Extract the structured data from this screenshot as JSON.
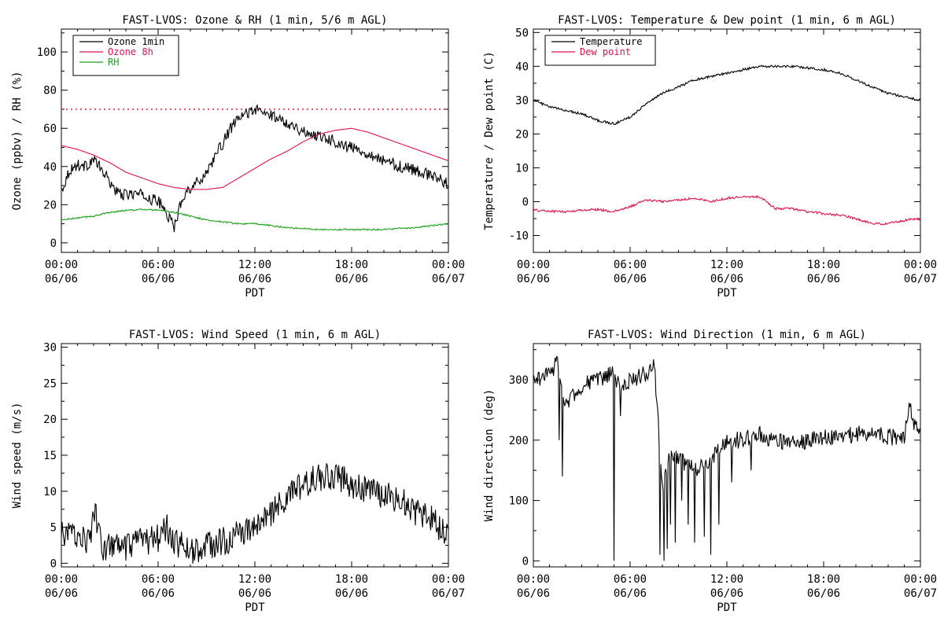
{
  "chart_data": [
    {
      "id": "ozone_rh",
      "type": "line",
      "title": "FAST-LVOS: Ozone & RH (1 min, 5/6 m AGL)",
      "xlabel": "PDT",
      "ylabel": "Ozone (ppbv) / RH (%)",
      "xlim": [
        "06/06 00:00",
        "06/07 00:00"
      ],
      "x_ticks": [
        {
          "time": "00:00",
          "date": "06/06"
        },
        {
          "time": "06:00",
          "date": "06/06"
        },
        {
          "time": "12:00",
          "date": "06/06"
        },
        {
          "time": "18:00",
          "date": "06/06"
        },
        {
          "time": "00:00",
          "date": "06/07"
        }
      ],
      "ylim": [
        -5,
        112
      ],
      "y_ticks": [
        "0",
        "20",
        "40",
        "60",
        "80",
        "100"
      ],
      "legend": "top-left",
      "reference_line": {
        "y": 70,
        "color": "#e0202e",
        "style": "dotted"
      },
      "series": [
        {
          "name": "Ozone 1min",
          "color": "#000000",
          "noise": 3.0,
          "x": [
            0,
            0.5,
            1,
            1.5,
            2,
            2.5,
            3,
            3.5,
            4,
            4.5,
            5,
            5.5,
            6,
            6.5,
            7,
            7.5,
            8,
            8.5,
            9,
            9.5,
            10,
            10.5,
            11,
            11.5,
            12,
            12.5,
            13,
            13.5,
            14,
            14.5,
            15,
            15.5,
            16,
            16.5,
            17,
            17.5,
            18,
            19,
            20,
            21,
            22,
            23,
            24
          ],
          "values": [
            27,
            38,
            41,
            40,
            44,
            38,
            32,
            26,
            25,
            26,
            25,
            23,
            22,
            16,
            8,
            24,
            29,
            32,
            37,
            45,
            52,
            60,
            65,
            68,
            70,
            68,
            67,
            65,
            63,
            61,
            58,
            57,
            56,
            55,
            53,
            51,
            50,
            47,
            43,
            40,
            38,
            35,
            31
          ]
        },
        {
          "name": "Ozone 8h",
          "color": "#e0104a",
          "noise": 0,
          "x": [
            0,
            1,
            2,
            3,
            4,
            5,
            6,
            7,
            8,
            9,
            10,
            11,
            12,
            13,
            14,
            15,
            16,
            17,
            18,
            19,
            20,
            21,
            22,
            23,
            24
          ],
          "values": [
            51,
            49,
            46,
            42,
            37,
            34,
            31,
            29,
            28,
            28,
            29,
            34,
            39,
            44,
            48,
            53,
            57,
            59,
            60,
            58,
            55,
            52,
            49,
            46,
            43
          ]
        },
        {
          "name": "RH",
          "color": "#1aa11a",
          "noise": 0.4,
          "x": [
            0,
            1,
            2,
            3,
            4,
            5,
            6,
            7,
            8,
            9,
            10,
            11,
            12,
            13,
            14,
            15,
            16,
            17,
            18,
            19,
            20,
            21,
            22,
            23,
            24
          ],
          "values": [
            12,
            13,
            14,
            16,
            17,
            17.5,
            17,
            16,
            14,
            12,
            11,
            10,
            10,
            9,
            8,
            7.5,
            7,
            7,
            7,
            7,
            7,
            7.5,
            8,
            9,
            10
          ]
        }
      ]
    },
    {
      "id": "temp_dew",
      "type": "line",
      "title": "FAST-LVOS: Temperature & Dew point (1 min, 6 m AGL)",
      "xlabel": "PDT",
      "ylabel": "Temperature / Dew point (C)",
      "xlim": [
        "06/06 00:00",
        "06/07 00:00"
      ],
      "x_ticks": [
        {
          "time": "00:00",
          "date": "06/06"
        },
        {
          "time": "06:00",
          "date": "06/06"
        },
        {
          "time": "12:00",
          "date": "06/06"
        },
        {
          "time": "18:00",
          "date": "06/06"
        },
        {
          "time": "00:00",
          "date": "06/07"
        }
      ],
      "ylim": [
        -15,
        51
      ],
      "y_ticks": [
        "-10",
        "0",
        "10",
        "20",
        "30",
        "40",
        "50"
      ],
      "legend": "top-left",
      "series": [
        {
          "name": "Temperature",
          "color": "#000000",
          "noise": 0.35,
          "x": [
            0,
            1,
            2,
            3,
            4,
            5,
            6,
            7,
            8,
            9,
            10,
            11,
            12,
            13,
            14,
            15,
            16,
            17,
            18,
            19,
            20,
            21,
            22,
            23,
            24
          ],
          "values": [
            30,
            28,
            27,
            26,
            24,
            23,
            25,
            29,
            32,
            34,
            36,
            37,
            38,
            39,
            40,
            40,
            40,
            39.5,
            39,
            38,
            36,
            34,
            32,
            31,
            30
          ]
        },
        {
          "name": "Dew point",
          "color": "#e0104a",
          "noise": 0.35,
          "x": [
            0,
            1,
            2,
            3,
            4,
            5,
            6,
            7,
            8,
            9,
            10,
            11,
            12,
            13,
            14,
            15,
            16,
            17,
            18,
            19,
            20,
            21,
            22,
            23,
            24
          ],
          "values": [
            -2.5,
            -2.8,
            -3,
            -2.5,
            -2.3,
            -3,
            -1.5,
            0.5,
            0,
            0.5,
            1,
            0,
            1,
            1.5,
            1.5,
            -2,
            -2,
            -3,
            -3.5,
            -4,
            -5,
            -6.5,
            -6.5,
            -5.5,
            -5
          ]
        }
      ]
    },
    {
      "id": "wind_speed",
      "type": "line",
      "title": "FAST-LVOS: Wind Speed (1 min, 6 m AGL)",
      "xlabel": "PDT",
      "ylabel": "Wind speed (m/s)",
      "xlim": [
        "06/06 00:00",
        "06/07 00:00"
      ],
      "x_ticks": [
        {
          "time": "00:00",
          "date": "06/06"
        },
        {
          "time": "06:00",
          "date": "06/06"
        },
        {
          "time": "12:00",
          "date": "06/06"
        },
        {
          "time": "18:00",
          "date": "06/06"
        },
        {
          "time": "00:00",
          "date": "06/07"
        }
      ],
      "ylim": [
        -0.5,
        30.5
      ],
      "y_ticks": [
        "0",
        "5",
        "10",
        "15",
        "20",
        "25",
        "30"
      ],
      "legend": "none",
      "series": [
        {
          "name": "",
          "color": "#000000",
          "noise": 2.0,
          "x": [
            0,
            1,
            1.8,
            2,
            2.5,
            3,
            4,
            5,
            6,
            6.5,
            7,
            8,
            8.5,
            9,
            10,
            11,
            12,
            13,
            14,
            15,
            16,
            17,
            18,
            19,
            20,
            21,
            22,
            23,
            24
          ],
          "values": [
            4,
            4,
            3,
            8,
            2,
            2.5,
            2,
            3,
            3.5,
            5,
            3,
            2,
            1.5,
            2.5,
            3,
            4,
            5,
            7,
            9,
            11,
            12,
            12,
            11,
            10,
            9.5,
            9,
            7,
            6,
            4
          ]
        }
      ]
    },
    {
      "id": "wind_dir",
      "type": "line",
      "title": "FAST-LVOS: Wind Direction (1 min, 6 m AGL)",
      "xlabel": "PDT",
      "ylabel": "Wind direction (deg)",
      "xlim": [
        "06/06 00:00",
        "06/07 00:00"
      ],
      "x_ticks": [
        {
          "time": "00:00",
          "date": "06/06"
        },
        {
          "time": "06:00",
          "date": "06/06"
        },
        {
          "time": "12:00",
          "date": "06/06"
        },
        {
          "time": "18:00",
          "date": "06/06"
        },
        {
          "time": "00:00",
          "date": "06/07"
        }
      ],
      "ylim": [
        -10,
        360
      ],
      "y_ticks": [
        "0",
        "100",
        "200",
        "300"
      ],
      "legend": "none",
      "series": [
        {
          "name": "",
          "color": "#000000",
          "noise": 14,
          "x": [
            0,
            1,
            1.5,
            2,
            3,
            4,
            5,
            5.5,
            6,
            7,
            7.5,
            8,
            8.5,
            9,
            9.5,
            10,
            11,
            12,
            13,
            14,
            15,
            16,
            17,
            18,
            19,
            20,
            21,
            22,
            23,
            23.3,
            23.6,
            24
          ],
          "values": [
            300,
            310,
            330,
            260,
            290,
            300,
            310,
            280,
            300,
            310,
            330,
            120,
            180,
            170,
            160,
            150,
            170,
            200,
            200,
            210,
            200,
            195,
            200,
            205,
            205,
            210,
            215,
            205,
            205,
            265,
            230,
            215
          ],
          "spikes": [
            [
              1.6,
              200
            ],
            [
              1.8,
              140
            ],
            [
              5.0,
              0
            ],
            [
              5.4,
              240
            ],
            [
              7.85,
              10
            ],
            [
              8.1,
              0
            ],
            [
              8.3,
              20
            ],
            [
              8.5,
              60
            ],
            [
              8.8,
              30
            ],
            [
              9.2,
              100
            ],
            [
              9.6,
              60
            ],
            [
              10.0,
              30
            ],
            [
              10.6,
              40
            ],
            [
              11.0,
              10
            ],
            [
              11.5,
              60
            ],
            [
              12.3,
              130
            ],
            [
              13.5,
              150
            ]
          ]
        }
      ]
    }
  ]
}
